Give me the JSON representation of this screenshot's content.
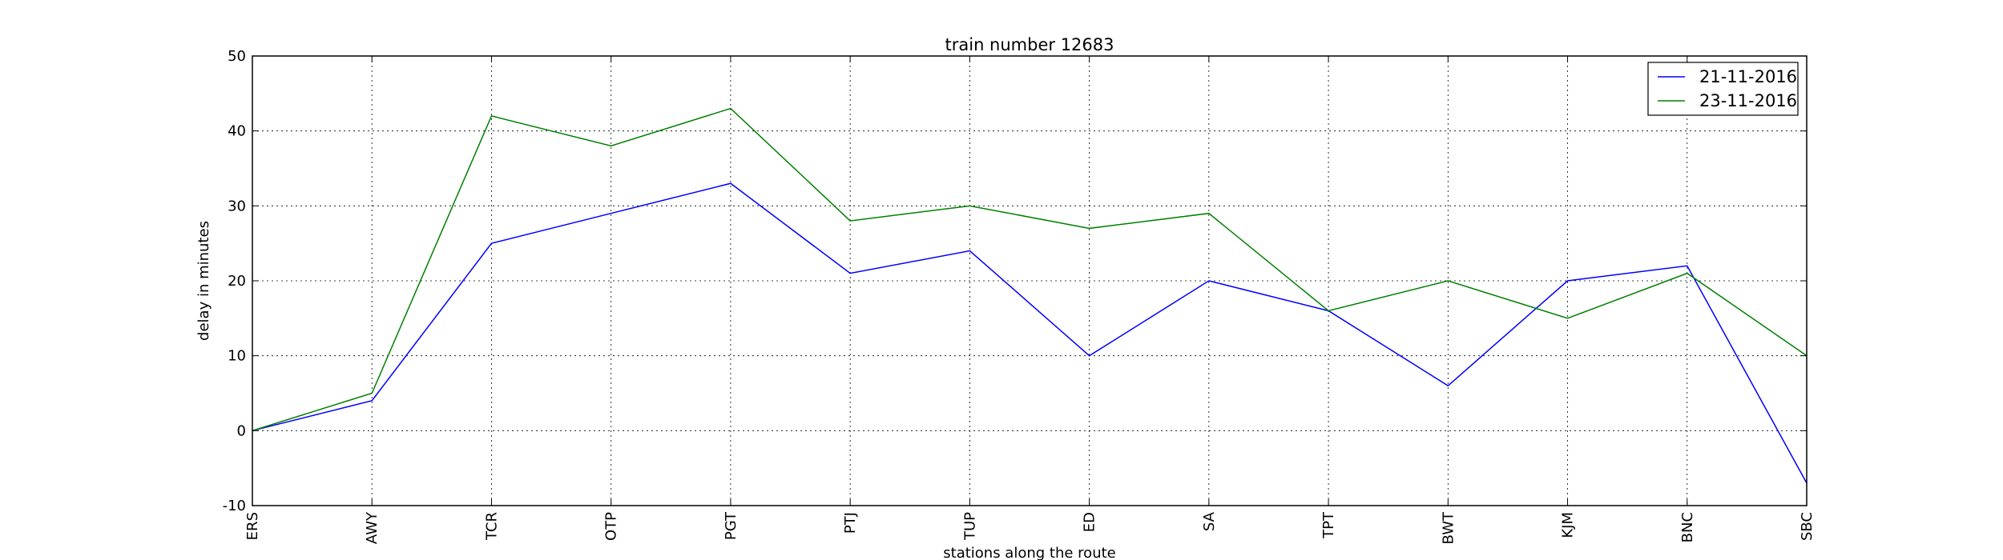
{
  "chart_data": {
    "type": "line",
    "title": "train number 12683",
    "xlabel": "stations along the route",
    "ylabel": "delay in minutes",
    "categories": [
      "ERS",
      "AWY",
      "TCR",
      "OTP",
      "PGT",
      "PTJ",
      "TUP",
      "ED",
      "SA",
      "TPT",
      "BWT",
      "KJM",
      "BNC",
      "SBC"
    ],
    "ylim": [
      -10,
      50
    ],
    "yticks": [
      -10,
      0,
      10,
      20,
      30,
      40,
      50
    ],
    "grid": true,
    "legend_position": "top-right",
    "series": [
      {
        "name": "21-11-2016",
        "color": "#0000ff",
        "values": [
          0,
          4,
          25,
          29,
          33,
          21,
          24,
          10,
          20,
          16,
          6,
          20,
          22,
          -7
        ]
      },
      {
        "name": "23-11-2016",
        "color": "#008000",
        "values": [
          0,
          5,
          42,
          38,
          43,
          28,
          30,
          27,
          29,
          16,
          20,
          15,
          21,
          10
        ]
      }
    ]
  }
}
